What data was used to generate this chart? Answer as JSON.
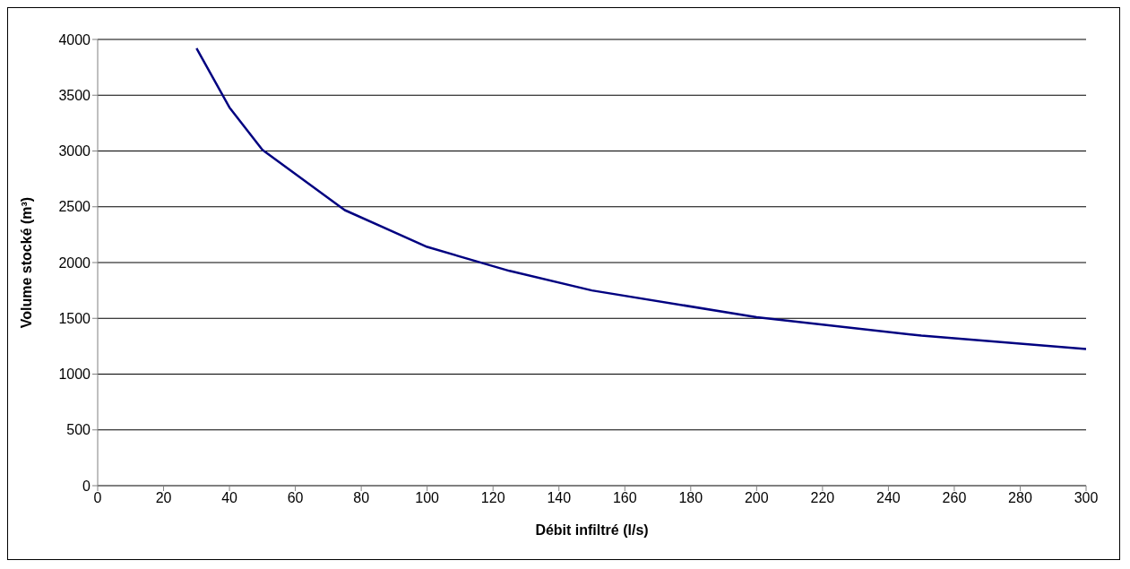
{
  "chart_data": {
    "type": "line",
    "xlabel": "Débit infiltré (l/s)",
    "ylabel": "Volume stocké (m³)",
    "x": [
      30,
      40,
      50,
      75,
      100,
      125,
      150,
      200,
      250,
      300
    ],
    "series": [
      {
        "color": "#000080",
        "values": [
          3920,
          3390,
          3010,
          2470,
          2140,
          1925,
          1750,
          1510,
          1345,
          1225
        ]
      }
    ],
    "xlim": [
      0,
      300
    ],
    "xticks": [
      0,
      20,
      40,
      60,
      80,
      100,
      120,
      140,
      160,
      180,
      200,
      220,
      240,
      260,
      280,
      300
    ],
    "ylim": [
      0,
      4000
    ],
    "yticks": [
      0,
      500,
      1000,
      1500,
      2000,
      2500,
      3000,
      3500,
      4000
    ],
    "grid": "y",
    "legend": false,
    "marker": "none",
    "line_style": "solid"
  }
}
